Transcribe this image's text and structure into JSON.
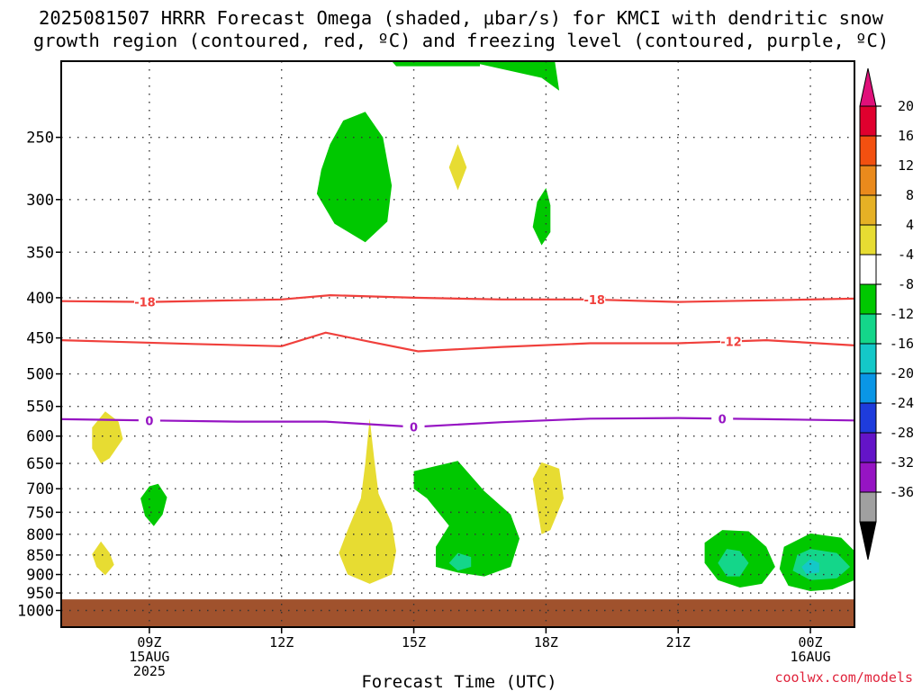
{
  "title": {
    "line1": "2025081507 HRRR Forecast Omega (shaded, μbar/s) for KMCI with dendritic snow",
    "line2": "growth region (contoured, red, ºC) and freezing level (contoured, purple, ºC)"
  },
  "credit": "coolwx.com/models",
  "chart_data": {
    "type": "contour",
    "xlabel": "Forecast Time (UTC)",
    "ylabel": "",
    "x_ticks": [
      {
        "hour": 9,
        "lines": [
          "09Z",
          "15AUG",
          "2025"
        ]
      },
      {
        "hour": 12,
        "lines": [
          "12Z"
        ]
      },
      {
        "hour": 15,
        "lines": [
          "15Z"
        ]
      },
      {
        "hour": 18,
        "lines": [
          "18Z"
        ]
      },
      {
        "hour": 21,
        "lines": [
          "21Z"
        ]
      },
      {
        "hour": 24,
        "lines": [
          "00Z",
          "16AUG"
        ]
      }
    ],
    "xlim": [
      7,
      25
    ],
    "y_ticks": [
      250,
      300,
      350,
      400,
      450,
      500,
      550,
      600,
      650,
      700,
      750,
      800,
      850,
      900,
      950,
      1000
    ],
    "ylim": [
      200,
      1050
    ],
    "y_scale": "log (pressure)",
    "ground_pressure": 968,
    "grid": true,
    "colorbar": {
      "labels": [
        "20",
        "16",
        "12",
        "8",
        "4",
        "-4",
        "-8",
        "-12",
        "-16",
        "-20",
        "-24",
        "-28",
        "-32",
        "-36"
      ],
      "colors": [
        "#e0002e",
        "#f25010",
        "#ea8a1c",
        "#e6b125",
        "#e7dc32",
        "#ffffff",
        "#00c800",
        "#14d68a",
        "#14c8c8",
        "#0a96e6",
        "#1e3cdc",
        "#6414c8",
        "#9614c3",
        "#a0a0a0"
      ],
      "top_arrow_color": "#e0107a",
      "bottom_arrow_color": "#000000"
    },
    "contour_lines": [
      {
        "name": "-18",
        "color": "#f0403c",
        "label_hours": [
          8.9,
          19.1
        ],
        "points": [
          [
            7.0,
            404
          ],
          [
            9,
            405
          ],
          [
            12,
            402
          ],
          [
            13.1,
            397
          ],
          [
            15,
            400
          ],
          [
            17,
            402
          ],
          [
            19,
            402
          ],
          [
            21,
            405
          ],
          [
            23,
            403
          ],
          [
            25,
            401
          ]
        ]
      },
      {
        "name": "-12",
        "color": "#f0403c",
        "label_hours": [
          22.2
        ],
        "points": [
          [
            7.0,
            453
          ],
          [
            10,
            458
          ],
          [
            12,
            461
          ],
          [
            13,
            443
          ],
          [
            14,
            455
          ],
          [
            15.1,
            468
          ],
          [
            17,
            462
          ],
          [
            19,
            457
          ],
          [
            21,
            457
          ],
          [
            23,
            453
          ],
          [
            25,
            460
          ]
        ]
      },
      {
        "name": "0",
        "color": "#9614c3",
        "label_hours": [
          9.0,
          15.0,
          22.0
        ],
        "points": [
          [
            7.0,
            571
          ],
          [
            9,
            573
          ],
          [
            11,
            575
          ],
          [
            13,
            575
          ],
          [
            15,
            584
          ],
          [
            17,
            576
          ],
          [
            19,
            570
          ],
          [
            21,
            569
          ],
          [
            23,
            571
          ],
          [
            25,
            573
          ]
        ]
      }
    ],
    "shaded_regions": [
      {
        "value": -8,
        "color": "#00c800",
        "points": [
          [
            16.2,
            200
          ],
          [
            17.9,
            210
          ],
          [
            18.3,
            218
          ],
          [
            18.2,
            200
          ]
        ]
      },
      {
        "value": -8,
        "color": "#00c800",
        "points": [
          [
            14.6,
            200
          ],
          [
            16.5,
            200
          ],
          [
            16.4,
            198
          ],
          [
            14.6,
            196
          ]
        ]
      },
      {
        "value": -8,
        "color": "#00c800",
        "points": [
          [
            14.5,
            200
          ],
          [
            14.6,
            203
          ],
          [
            16.5,
            203
          ],
          [
            16.5,
            200
          ]
        ]
      },
      {
        "value": -8,
        "color": "#00c800",
        "points": [
          [
            13.4,
            238
          ],
          [
            13.9,
            232
          ],
          [
            14.3,
            250
          ],
          [
            14.5,
            288
          ],
          [
            14.4,
            320
          ],
          [
            13.9,
            340
          ],
          [
            13.2,
            322
          ],
          [
            12.8,
            295
          ],
          [
            12.9,
            275
          ],
          [
            13.1,
            255
          ]
        ]
      },
      {
        "value": 4,
        "color": "#e7dc32",
        "points": [
          [
            16.0,
            255
          ],
          [
            16.2,
            273
          ],
          [
            16.0,
            292
          ],
          [
            15.8,
            273
          ]
        ]
      },
      {
        "value": -8,
        "color": "#00c800",
        "points": [
          [
            18.0,
            290
          ],
          [
            18.1,
            305
          ],
          [
            18.1,
            330
          ],
          [
            17.9,
            343
          ],
          [
            17.7,
            325
          ],
          [
            17.8,
            302
          ]
        ]
      },
      {
        "value": 4,
        "color": "#e7dc32",
        "points": [
          [
            8.0,
            558
          ],
          [
            8.3,
            575
          ],
          [
            8.4,
            605
          ],
          [
            8.1,
            640
          ],
          [
            7.9,
            650
          ],
          [
            7.7,
            622
          ],
          [
            7.7,
            585
          ]
        ]
      },
      {
        "value": -8,
        "color": "#00c800",
        "points": [
          [
            9.2,
            690
          ],
          [
            9.4,
            718
          ],
          [
            9.3,
            755
          ],
          [
            9.1,
            781
          ],
          [
            8.9,
            758
          ],
          [
            8.8,
            720
          ],
          [
            9.0,
            695
          ]
        ]
      },
      {
        "value": 4,
        "color": "#e7dc32",
        "points": [
          [
            7.9,
            817
          ],
          [
            8.1,
            845
          ],
          [
            8.2,
            875
          ],
          [
            8.0,
            902
          ],
          [
            7.8,
            880
          ],
          [
            7.7,
            848
          ]
        ]
      },
      {
        "value": 4,
        "color": "#e7dc32",
        "points": [
          [
            14.0,
            570
          ],
          [
            14.1,
            640
          ],
          [
            14.2,
            710
          ],
          [
            14.5,
            775
          ],
          [
            14.6,
            840
          ],
          [
            14.5,
            900
          ],
          [
            14.0,
            925
          ],
          [
            13.5,
            900
          ],
          [
            13.3,
            845
          ],
          [
            13.5,
            790
          ],
          [
            13.8,
            720
          ],
          [
            13.9,
            650
          ]
        ]
      },
      {
        "value": -8,
        "color": "#00c800",
        "points": [
          [
            15.0,
            665
          ],
          [
            16.0,
            645
          ],
          [
            16.6,
            705
          ],
          [
            17.2,
            755
          ],
          [
            17.4,
            810
          ],
          [
            17.2,
            880
          ],
          [
            16.6,
            905
          ],
          [
            16.0,
            895
          ],
          [
            15.5,
            880
          ],
          [
            15.5,
            830
          ],
          [
            15.8,
            780
          ],
          [
            15.3,
            720
          ],
          [
            15.0,
            700
          ]
        ]
      },
      {
        "value": -12,
        "color": "#14d68a",
        "points": [
          [
            16.0,
            845
          ],
          [
            16.3,
            855
          ],
          [
            16.3,
            880
          ],
          [
            16.0,
            890
          ],
          [
            15.8,
            870
          ]
        ]
      },
      {
        "value": 4,
        "color": "#e7dc32",
        "points": [
          [
            17.9,
            648
          ],
          [
            18.3,
            660
          ],
          [
            18.4,
            720
          ],
          [
            18.1,
            790
          ],
          [
            17.9,
            800
          ],
          [
            17.8,
            740
          ],
          [
            17.7,
            680
          ]
        ]
      },
      {
        "value": -8,
        "color": "#00c800",
        "points": [
          [
            22.0,
            790
          ],
          [
            22.6,
            793
          ],
          [
            23.0,
            830
          ],
          [
            23.2,
            880
          ],
          [
            22.9,
            925
          ],
          [
            22.4,
            935
          ],
          [
            21.9,
            915
          ],
          [
            21.6,
            870
          ],
          [
            21.6,
            820
          ]
        ]
      },
      {
        "value": -12,
        "color": "#14d68a",
        "points": [
          [
            22.1,
            835
          ],
          [
            22.4,
            840
          ],
          [
            22.6,
            870
          ],
          [
            22.4,
            905
          ],
          [
            22.1,
            905
          ],
          [
            21.9,
            870
          ]
        ]
      },
      {
        "value": -8,
        "color": "#00c800",
        "points": [
          [
            24.0,
            798
          ],
          [
            24.7,
            808
          ],
          [
            25.0,
            840
          ],
          [
            25.0,
            915
          ],
          [
            24.5,
            940
          ],
          [
            24.0,
            945
          ],
          [
            23.5,
            930
          ],
          [
            23.3,
            885
          ],
          [
            23.4,
            830
          ]
        ]
      },
      {
        "value": -12,
        "color": "#14d68a",
        "points": [
          [
            24.0,
            835
          ],
          [
            24.6,
            845
          ],
          [
            24.9,
            880
          ],
          [
            24.6,
            910
          ],
          [
            24.0,
            915
          ],
          [
            23.6,
            890
          ],
          [
            23.7,
            850
          ]
        ]
      },
      {
        "value": -16,
        "color": "#14c8c8",
        "points": [
          [
            24.0,
            860
          ],
          [
            24.2,
            870
          ],
          [
            24.2,
            895
          ],
          [
            23.9,
            898
          ],
          [
            23.8,
            880
          ]
        ]
      }
    ]
  }
}
